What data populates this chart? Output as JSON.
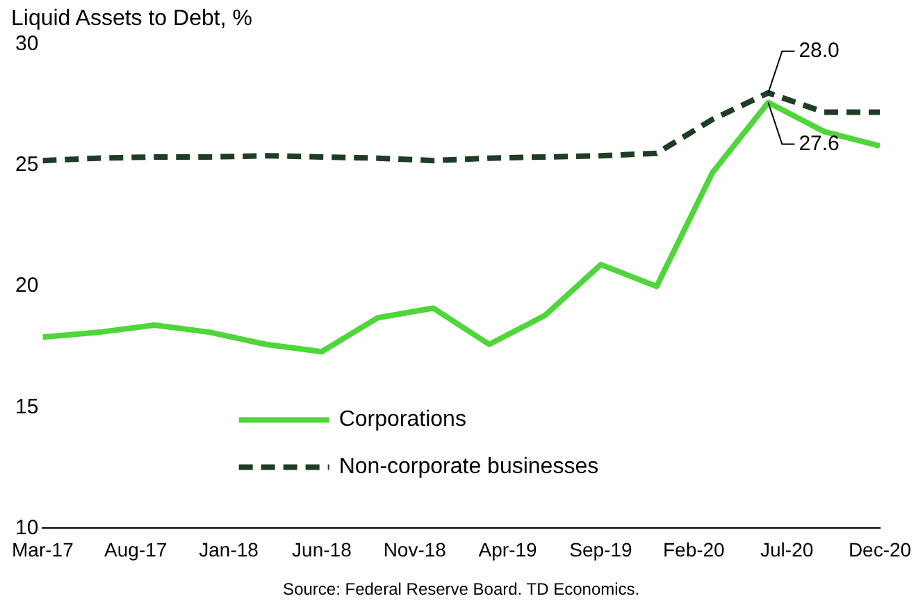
{
  "chart_data": {
    "type": "line",
    "title": "Liquid Assets to Debt, %",
    "x": [
      "2017-03",
      "2017-06",
      "2017-09",
      "2017-12",
      "2018-03",
      "2018-06",
      "2018-09",
      "2018-12",
      "2019-03",
      "2019-06",
      "2019-09",
      "2019-12",
      "2020-03",
      "2020-06",
      "2020-09",
      "2020-12"
    ],
    "series": [
      {
        "name": "Corporations",
        "color": "#4fd63a",
        "line_style": "solid",
        "values": [
          17.9,
          18.1,
          18.4,
          18.1,
          17.6,
          17.3,
          18.7,
          19.1,
          17.6,
          18.8,
          20.9,
          20.0,
          24.7,
          27.6,
          26.4,
          25.8
        ]
      },
      {
        "name": "Non-corporate businesses",
        "color": "#1e3d24",
        "line_style": "dashed",
        "values": [
          25.2,
          25.3,
          25.35,
          25.35,
          25.4,
          25.35,
          25.3,
          25.2,
          25.3,
          25.35,
          25.4,
          25.5,
          26.9,
          28.0,
          27.2,
          27.2
        ]
      }
    ],
    "xlim": [
      "2017-03",
      "2020-12"
    ],
    "xticks": [
      {
        "value": "2017-03",
        "label": "Mar-17"
      },
      {
        "value": "2017-08",
        "label": "Aug-17"
      },
      {
        "value": "2018-01",
        "label": "Jan-18"
      },
      {
        "value": "2018-06",
        "label": "Jun-18"
      },
      {
        "value": "2018-11",
        "label": "Nov-18"
      },
      {
        "value": "2019-04",
        "label": "Apr-19"
      },
      {
        "value": "2019-09",
        "label": "Sep-19"
      },
      {
        "value": "2020-02",
        "label": "Feb-20"
      },
      {
        "value": "2020-07",
        "label": "Jul-20"
      },
      {
        "value": "2020-12",
        "label": "Dec-20"
      }
    ],
    "ylim": [
      10,
      30
    ],
    "yticks": [
      10,
      15,
      20,
      25,
      30
    ],
    "grid": false,
    "legend": "bottom",
    "marker": "none",
    "annotations": [
      {
        "text": "28.0",
        "x": "2020-06",
        "y": 28.0
      },
      {
        "text": "27.6",
        "x": "2020-06",
        "y": 27.6
      },
      "Source: Federal Reserve Board. TD Economics."
    ]
  }
}
